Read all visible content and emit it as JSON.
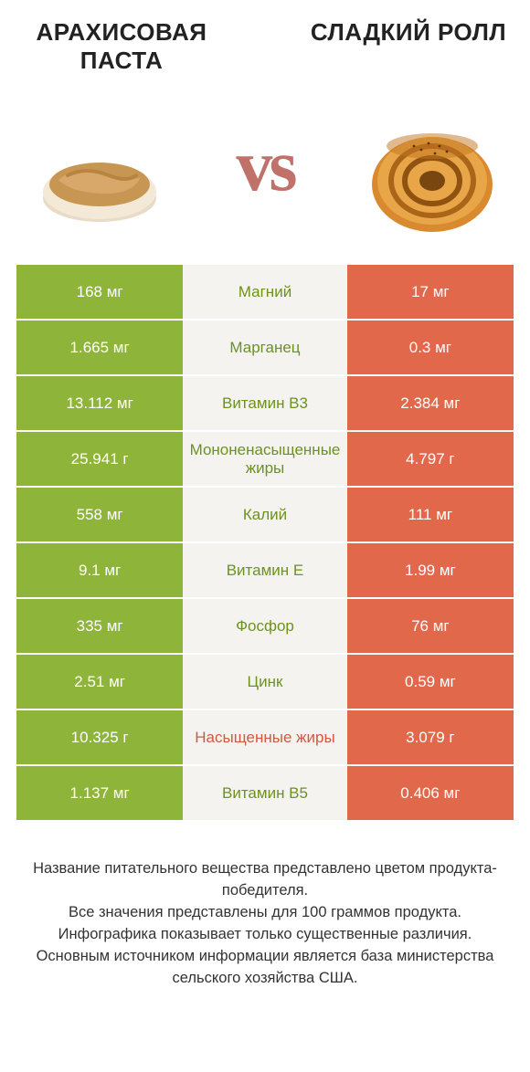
{
  "header": {
    "left_title": "АРАХИСОВАЯ ПАСТА",
    "right_title": "СЛАДКИЙ РОЛЛ",
    "vs_text": "vs"
  },
  "colors": {
    "left_bg": "#8fb43a",
    "right_bg": "#e2684c",
    "mid_bg": "#f4f3ef",
    "mid_green": "#6d9220",
    "mid_red": "#d05a40",
    "value_text": "#ffffff",
    "vs_color": "#c0726a"
  },
  "fonts": {
    "title_size": 26,
    "value_size": 17,
    "nutrient_size": 17,
    "footnote_size": 16.5,
    "vs_size": 80
  },
  "rows": [
    {
      "left": "168 мг",
      "mid": "Магний",
      "right": "17 мг",
      "winner": "left"
    },
    {
      "left": "1.665 мг",
      "mid": "Марганец",
      "right": "0.3 мг",
      "winner": "left"
    },
    {
      "left": "13.112 мг",
      "mid": "Витамин B3",
      "right": "2.384 мг",
      "winner": "left"
    },
    {
      "left": "25.941 г",
      "mid": "Мононенасыщенные жиры",
      "right": "4.797 г",
      "winner": "left"
    },
    {
      "left": "558 мг",
      "mid": "Калий",
      "right": "111 мг",
      "winner": "left"
    },
    {
      "left": "9.1 мг",
      "mid": "Витамин E",
      "right": "1.99 мг",
      "winner": "left"
    },
    {
      "left": "335 мг",
      "mid": "Фосфор",
      "right": "76 мг",
      "winner": "left"
    },
    {
      "left": "2.51 мг",
      "mid": "Цинк",
      "right": "0.59 мг",
      "winner": "left"
    },
    {
      "left": "10.325 г",
      "mid": "Насыщенные жиры",
      "right": "3.079 г",
      "winner": "right"
    },
    {
      "left": "1.137 мг",
      "mid": "Витамин B5",
      "right": "0.406 мг",
      "winner": "left"
    }
  ],
  "footnotes": {
    "l1": "Название питательного вещества представлено цветом продукта-победителя.",
    "l2": "Все значения представлены для 100 граммов продукта.",
    "l3": "Инфографика показывает только существенные различия.",
    "l4": "Основным источником информации является база министерства сельского хозяйства США."
  },
  "images": {
    "left_alt": "peanut-butter-bowl",
    "right_alt": "cinnamon-roll"
  }
}
